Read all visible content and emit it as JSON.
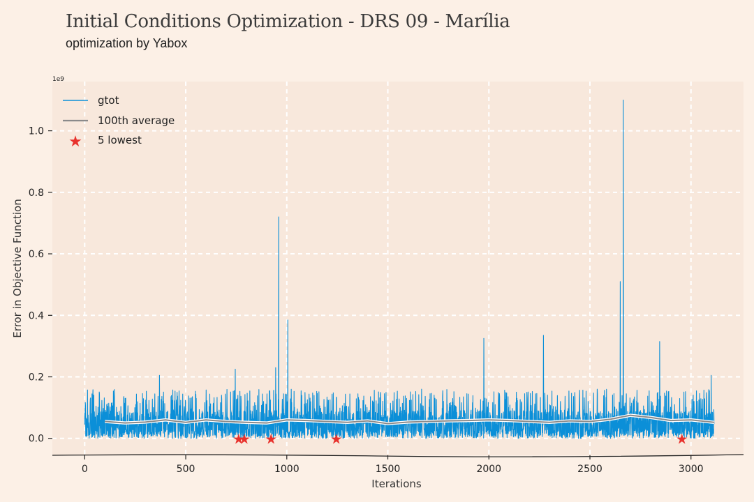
{
  "title": "Initial Conditions Optimization - DRS 09 - Marília",
  "subtitle": "optimization by Yabox",
  "colors": {
    "background": "#fcf0e6",
    "plot_background": "#f8e8dc",
    "grid": "#ffffff",
    "gtot": "#0b8fd8",
    "average": "#8a8a8a",
    "lowest": "#e8322d"
  },
  "chart_data": {
    "type": "line",
    "title": "Initial Conditions Optimization - DRS 09 - Marília",
    "subtitle": "optimization by Yabox",
    "xlabel": "Iterations",
    "ylabel": "Error in Objective Function",
    "y_offset_label": "1e9",
    "xlim": [
      -160,
      3260
    ],
    "ylim": [
      -0.055,
      1.16
    ],
    "xticks": [
      0,
      500,
      1000,
      1500,
      2000,
      2500,
      3000
    ],
    "yticks": [
      0.0,
      0.2,
      0.4,
      0.6,
      0.8,
      1.0
    ],
    "xtick_labels": [
      "0",
      "500",
      "1000",
      "1500",
      "2000",
      "2500",
      "3000"
    ],
    "ytick_labels": [
      "0.0",
      "0.2",
      "0.4",
      "0.6",
      "0.8",
      "1.0"
    ],
    "grid": true,
    "legend_position": "top-left",
    "legend": [
      "gtot",
      "100th average",
      "5 lowest"
    ],
    "series": [
      {
        "name": "gtot",
        "n_points": 3115,
        "baseline_band": [
          0.0,
          0.16
        ],
        "peaks": [
          {
            "x": 370,
            "y": 0.205
          },
          {
            "x": 745,
            "y": 0.225
          },
          {
            "x": 945,
            "y": 0.23
          },
          {
            "x": 960,
            "y": 0.72
          },
          {
            "x": 1005,
            "y": 0.385
          },
          {
            "x": 1975,
            "y": 0.325
          },
          {
            "x": 2270,
            "y": 0.335
          },
          {
            "x": 2650,
            "y": 0.51
          },
          {
            "x": 2665,
            "y": 1.1
          },
          {
            "x": 2845,
            "y": 0.315
          },
          {
            "x": 3100,
            "y": 0.205
          }
        ]
      },
      {
        "name": "100th average",
        "x": [
          100,
          200,
          300,
          400,
          500,
          600,
          700,
          800,
          900,
          1000,
          1100,
          1200,
          1300,
          1400,
          1500,
          1600,
          1700,
          1800,
          1900,
          2000,
          2100,
          2200,
          2300,
          2400,
          2500,
          2600,
          2700,
          2800,
          2900,
          3000,
          3115
        ],
        "y": [
          0.055,
          0.05,
          0.053,
          0.06,
          0.052,
          0.06,
          0.055,
          0.052,
          0.05,
          0.06,
          0.058,
          0.055,
          0.052,
          0.057,
          0.048,
          0.053,
          0.055,
          0.057,
          0.058,
          0.06,
          0.058,
          0.055,
          0.052,
          0.057,
          0.055,
          0.062,
          0.075,
          0.068,
          0.058,
          0.06,
          0.052
        ]
      },
      {
        "name": "5 lowest",
        "x": [
          762,
          790,
          922,
          1245,
          2955
        ],
        "y": [
          0.0,
          0.0,
          0.0,
          0.0,
          0.0
        ]
      }
    ]
  }
}
